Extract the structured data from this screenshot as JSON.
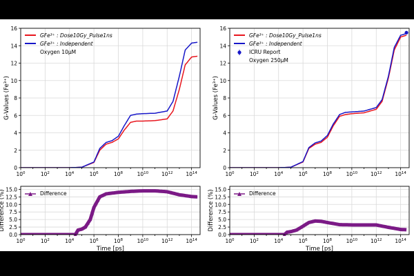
{
  "chart_data": [
    {
      "type": "line",
      "panel": "top-left",
      "ylabel": "G-Values (Fe³⁺)",
      "xlabel": "",
      "xscale": "log",
      "xlim": [
        1,
        500000000000000.0
      ],
      "ylim": [
        0,
        16
      ],
      "yticks": [
        0,
        2,
        4,
        6,
        8,
        10,
        12,
        14,
        16
      ],
      "grid": true,
      "legend_position": "upper-left",
      "legend_note": "Oxygen 10μM",
      "series": [
        {
          "name": "GFe³⁺ : Dose10Gy_Pulse1ns",
          "color": "#e8141c",
          "x": [
            1,
            10000.0,
            100000.0,
            1000000.0,
            3000000.0,
            10000000.0,
            30000000.0,
            100000000.0,
            300000000.0,
            1000000000.0,
            3000000000.0,
            10000000000.0,
            100000000000.0,
            1000000000000.0,
            3000000000000.0,
            10000000000000.0,
            30000000000000.0,
            100000000000000.0,
            300000000000000.0
          ],
          "y": [
            0,
            0,
            0.05,
            0.6,
            2.0,
            2.7,
            2.9,
            3.3,
            4.3,
            5.2,
            5.35,
            5.35,
            5.4,
            5.6,
            6.5,
            9.0,
            11.8,
            12.7,
            12.8
          ]
        },
        {
          "name": "GFe³⁺ : Independent",
          "color": "#1616c8",
          "x": [
            1,
            10000.0,
            100000.0,
            1000000.0,
            3000000.0,
            10000000.0,
            30000000.0,
            100000000.0,
            300000000.0,
            1000000000.0,
            3000000000.0,
            10000000000.0,
            100000000000.0,
            1000000000000.0,
            3000000000000.0,
            10000000000000.0,
            30000000000000.0,
            100000000000000.0,
            300000000000000.0
          ],
          "y": [
            0,
            0,
            0.05,
            0.65,
            2.2,
            2.9,
            3.1,
            3.6,
            4.8,
            6.0,
            6.15,
            6.2,
            6.25,
            6.5,
            7.6,
            10.5,
            13.5,
            14.3,
            14.4
          ]
        }
      ]
    },
    {
      "type": "line",
      "panel": "top-right",
      "ylabel": "G-Values (Fe³⁺)",
      "xlabel": "",
      "xscale": "log",
      "xlim": [
        1,
        500000000000000.0
      ],
      "ylim": [
        0,
        16
      ],
      "yticks": [
        0,
        2,
        4,
        6,
        8,
        10,
        12,
        14,
        16
      ],
      "grid": true,
      "legend_position": "upper-left",
      "legend_note": "Oxygen 250μM",
      "series": [
        {
          "name": "GFe³⁺ : Dose10Gy_Pulse1ns",
          "color": "#e8141c",
          "x": [
            1,
            10000.0,
            100000.0,
            1000000.0,
            3000000.0,
            10000000.0,
            30000000.0,
            100000000.0,
            300000000.0,
            1000000000.0,
            3000000000.0,
            10000000000.0,
            100000000000.0,
            1000000000000.0,
            3000000000000.0,
            10000000000000.0,
            30000000000000.0,
            100000000000000.0,
            300000000000000.0
          ],
          "y": [
            0,
            0,
            0.05,
            0.65,
            2.2,
            2.7,
            2.9,
            3.5,
            4.8,
            5.9,
            6.1,
            6.2,
            6.3,
            6.7,
            7.6,
            10.3,
            13.5,
            15.0,
            15.2
          ]
        },
        {
          "name": "GFe³⁺ : Independent",
          "color": "#1616c8",
          "x": [
            1,
            10000.0,
            100000.0,
            1000000.0,
            3000000.0,
            10000000.0,
            30000000.0,
            100000000.0,
            300000000.0,
            1000000000.0,
            3000000000.0,
            10000000000.0,
            100000000000.0,
            1000000000000.0,
            3000000000000.0,
            10000000000000.0,
            30000000000000.0,
            100000000000000.0,
            300000000000000.0
          ],
          "y": [
            0,
            0,
            0.05,
            0.7,
            2.3,
            2.85,
            3.05,
            3.7,
            5.0,
            6.1,
            6.35,
            6.4,
            6.5,
            6.9,
            7.8,
            10.5,
            13.8,
            15.2,
            15.4
          ]
        },
        {
          "name": "ICRU Report",
          "color": "#1616c8",
          "kind": "errorbar",
          "x": [
            300000000000000.0
          ],
          "y": [
            15.5
          ],
          "yerr": [
            0.2
          ]
        }
      ]
    },
    {
      "type": "line",
      "panel": "bottom-left",
      "ylabel": "Difference (%)",
      "xlabel": "Time [ps]",
      "xscale": "log",
      "xlim": [
        1,
        500000000000000.0
      ],
      "ylim": [
        0,
        16
      ],
      "yticks": [
        0.0,
        2.5,
        5.0,
        7.5,
        10.0,
        12.5,
        15.0
      ],
      "grid": true,
      "legend_position": "upper-left",
      "series": [
        {
          "name": "Difference",
          "color": "#7b1a86",
          "marker": "triangle",
          "x": [
            1,
            10000.0,
            30000.0,
            50000.0,
            100000.0,
            200000.0,
            500000.0,
            1000000.0,
            3000000.0,
            10000000.0,
            100000000.0,
            1000000000.0,
            10000000000.0,
            100000000000.0,
            1000000000000.0,
            10000000000000.0,
            100000000000000.0,
            300000000000000.0
          ],
          "y": [
            0,
            0,
            0,
            1.5,
            1.8,
            2.5,
            5.0,
            9.0,
            12.5,
            13.5,
            14.0,
            14.3,
            14.5,
            14.5,
            14.2,
            13.2,
            12.6,
            12.5
          ]
        }
      ]
    },
    {
      "type": "line",
      "panel": "bottom-right",
      "ylabel": "Difference (%)",
      "xlabel": "Time [ps]",
      "xscale": "log",
      "xlim": [
        1,
        500000000000000.0
      ],
      "ylim": [
        0,
        16
      ],
      "yticks": [
        0.0,
        2.5,
        5.0,
        7.5,
        10.0,
        12.5,
        15.0
      ],
      "grid": true,
      "legend_position": "upper-left",
      "series": [
        {
          "name": "Difference",
          "color": "#7b1a86",
          "marker": "triangle",
          "x": [
            1,
            10000.0,
            30000.0,
            50000.0,
            100000.0,
            300000.0,
            1000000.0,
            3000000.0,
            10000000.0,
            30000000.0,
            100000000.0,
            1000000000.0,
            10000000000.0,
            100000000000.0,
            1000000000000.0,
            10000000000000.0,
            100000000000000.0,
            300000000000000.0
          ],
          "y": [
            0,
            0,
            0,
            0.8,
            1.0,
            1.5,
            2.8,
            4.0,
            4.5,
            4.4,
            4.0,
            3.3,
            3.2,
            3.2,
            3.2,
            2.4,
            1.7,
            1.6
          ]
        }
      ]
    }
  ]
}
